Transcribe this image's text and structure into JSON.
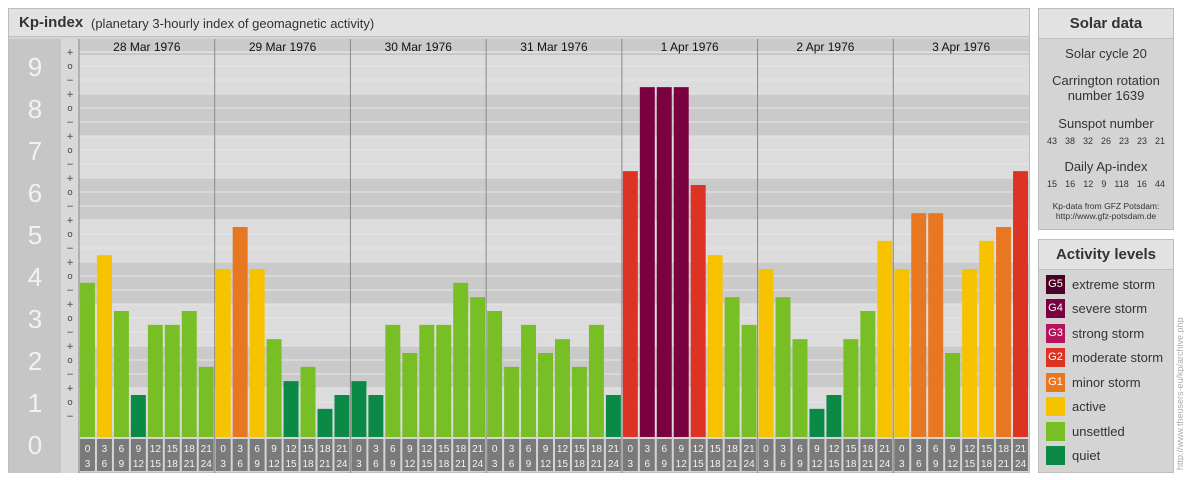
{
  "header": {
    "title": "Kp-index",
    "subtitle": "(planetary 3-hourly index of geomagnetic activity)"
  },
  "solar": {
    "title": "Solar data",
    "cycle": "Solar cycle 20",
    "carrington_line1": "Carrington rotation",
    "carrington_line2": "number 1639",
    "sunspot_title": "Sunspot number",
    "sunspot_values": [
      "43",
      "38",
      "32",
      "26",
      "23",
      "23",
      "21"
    ],
    "ap_title": "Daily Ap-index",
    "ap_values": [
      "15",
      "16",
      "12",
      "9",
      "118",
      "16",
      "44"
    ],
    "source_line1": "Kp-data from GFZ Potsdam:",
    "source_line2": "http://www.gfz-potsdam.de"
  },
  "activity": {
    "title": "Activity levels",
    "levels": [
      {
        "code": "G5",
        "label": "extreme storm",
        "color": "#4d0026"
      },
      {
        "code": "G4",
        "label": "severe storm",
        "color": "#7a0040"
      },
      {
        "code": "G3",
        "label": "strong storm",
        "color": "#b3145c"
      },
      {
        "code": "G2",
        "label": "moderate storm",
        "color": "#dd3322"
      },
      {
        "code": "G1",
        "label": "minor storm",
        "color": "#e87722"
      },
      {
        "code": "",
        "label": "active",
        "color": "#f7c200"
      },
      {
        "code": "",
        "label": "unsettled",
        "color": "#78bf26"
      },
      {
        "code": "",
        "label": "quiet",
        "color": "#0a8a46"
      }
    ]
  },
  "watermark": "http://www.theusers-eu/kp/archive.php",
  "chart_data": {
    "type": "bar",
    "title": "Kp-index",
    "ylim": [
      0,
      9
    ],
    "y_ticks": [
      "0",
      "1",
      "2",
      "3",
      "4",
      "5",
      "6",
      "7",
      "8",
      "9"
    ],
    "y_minor_labels": [
      "+",
      "o",
      "−"
    ],
    "days": [
      "28 Mar 1976",
      "29 Mar 1976",
      "30 Mar 1976",
      "31 Mar 1976",
      "1 Apr 1976",
      "2 Apr 1976",
      "3 Apr 1976"
    ],
    "interval_labels": [
      [
        "0",
        "3"
      ],
      [
        "3",
        "6"
      ],
      [
        "6",
        "9"
      ],
      [
        "9",
        "12"
      ],
      [
        "12",
        "15"
      ],
      [
        "15",
        "18"
      ],
      [
        "18",
        "21"
      ],
      [
        "21",
        "24"
      ]
    ],
    "values": [
      [
        3.67,
        4.33,
        3.0,
        1.0,
        2.67,
        2.67,
        3.0,
        1.67
      ],
      [
        4.0,
        5.0,
        4.0,
        2.33,
        1.33,
        1.67,
        0.67,
        1.0
      ],
      [
        1.33,
        1.0,
        2.67,
        2.0,
        2.67,
        2.67,
        3.67,
        3.33
      ],
      [
        3.0,
        1.67,
        2.67,
        2.0,
        2.33,
        1.67,
        2.67,
        1.0
      ],
      [
        6.33,
        8.33,
        8.33,
        8.33,
        6.0,
        4.33,
        3.33,
        2.67
      ],
      [
        4.0,
        3.33,
        2.33,
        0.67,
        1.0,
        2.33,
        3.0,
        4.67
      ],
      [
        4.0,
        5.33,
        5.33,
        2.0,
        4.0,
        4.67,
        5.0,
        6.33
      ]
    ],
    "level_colors": {
      "quiet": "#0a8a46",
      "unsettled": "#78bf26",
      "active": "#f7c200",
      "G1": "#e87722",
      "G2": "#dd3322",
      "G4": "#7a0040"
    }
  }
}
